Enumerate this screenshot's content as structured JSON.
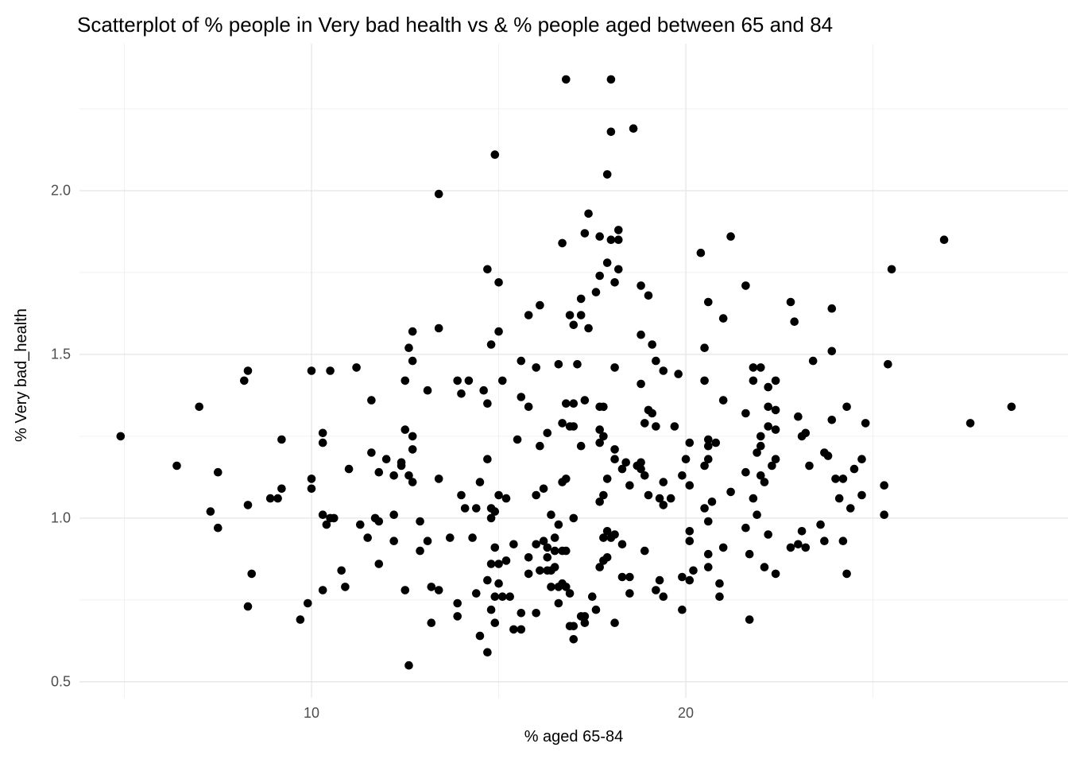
{
  "chart_data": {
    "type": "scatter",
    "title": "Scatterplot of % people in Very bad health vs & % people aged between 65 and 84",
    "xlabel": "% aged 65-84",
    "ylabel": "% Very bad_health",
    "x_domain": [
      3.8,
      30.21
    ],
    "y_domain": [
      0.451,
      2.449
    ],
    "x_ticks": [
      {
        "value": 10,
        "label": "10"
      },
      {
        "value": 20,
        "label": "20"
      }
    ],
    "y_ticks": [
      {
        "value": 0.5,
        "label": "0.5"
      },
      {
        "value": 1.0,
        "label": "1.0"
      },
      {
        "value": 1.5,
        "label": "1.5"
      },
      {
        "value": 2.0,
        "label": "2.0"
      }
    ],
    "x_minor": [
      5,
      15,
      25
    ],
    "y_minor": [
      0.75,
      1.25,
      1.75,
      2.25
    ],
    "grid": true,
    "legend": "none",
    "point_color": "#000000",
    "point_radius": 5.3,
    "colors": {
      "grid_major": "#e6e6e6",
      "grid_minor": "#f0f0f0",
      "tick_label": "#4d4d4d",
      "text": "#000000",
      "background": "#ffffff"
    },
    "points": [
      [
        16.8,
        2.34
      ],
      [
        14.9,
        2.11
      ],
      [
        13.4,
        1.99
      ],
      [
        18.0,
        2.34
      ],
      [
        18.0,
        2.18
      ],
      [
        18.6,
        2.19
      ],
      [
        17.9,
        2.05
      ],
      [
        8.3,
        1.45
      ],
      [
        10.0,
        1.45
      ],
      [
        10.5,
        1.45
      ],
      [
        16.7,
        1.84
      ],
      [
        14.7,
        1.76
      ],
      [
        15.0,
        1.72
      ],
      [
        16.1,
        1.65
      ],
      [
        15.8,
        1.62
      ],
      [
        17.2,
        1.67
      ],
      [
        16.9,
        1.62
      ],
      [
        17.0,
        1.59
      ],
      [
        12.7,
        1.57
      ],
      [
        13.4,
        1.58
      ],
      [
        15.0,
        1.57
      ],
      [
        14.8,
        1.53
      ],
      [
        12.6,
        1.52
      ],
      [
        12.7,
        1.48
      ],
      [
        11.2,
        1.46
      ],
      [
        15.6,
        1.48
      ],
      [
        16.0,
        1.46
      ],
      [
        16.6,
        1.47
      ],
      [
        17.1,
        1.47
      ],
      [
        17.2,
        1.62
      ],
      [
        17.4,
        1.93
      ],
      [
        17.3,
        1.87
      ],
      [
        18.2,
        1.88
      ],
      [
        17.7,
        1.86
      ],
      [
        18.0,
        1.85
      ],
      [
        18.2,
        1.85
      ],
      [
        21.2,
        1.86
      ],
      [
        20.4,
        1.81
      ],
      [
        17.9,
        1.78
      ],
      [
        18.2,
        1.76
      ],
      [
        17.7,
        1.74
      ],
      [
        18.1,
        1.72
      ],
      [
        18.8,
        1.71
      ],
      [
        17.6,
        1.69
      ],
      [
        19.0,
        1.68
      ],
      [
        21.6,
        1.71
      ],
      [
        17.4,
        1.58
      ],
      [
        18.8,
        1.56
      ],
      [
        19.1,
        1.53
      ],
      [
        20.6,
        1.66
      ],
      [
        21.0,
        1.61
      ],
      [
        22.8,
        1.66
      ],
      [
        22.9,
        1.6
      ],
      [
        20.5,
        1.52
      ],
      [
        23.4,
        1.48
      ],
      [
        18.1,
        1.46
      ],
      [
        19.2,
        1.48
      ],
      [
        19.4,
        1.45
      ],
      [
        21.8,
        1.46
      ],
      [
        22.0,
        1.46
      ],
      [
        19.8,
        1.44
      ],
      [
        26.9,
        1.85
      ],
      [
        25.5,
        1.76
      ],
      [
        23.9,
        1.64
      ],
      [
        23.9,
        1.51
      ],
      [
        25.4,
        1.47
      ],
      [
        8.2,
        1.42
      ],
      [
        7.0,
        1.34
      ],
      [
        4.9,
        1.25
      ],
      [
        9.2,
        1.24
      ],
      [
        10.3,
        1.26
      ],
      [
        10.3,
        1.23
      ],
      [
        6.4,
        1.16
      ],
      [
        7.5,
        1.14
      ],
      [
        10.0,
        1.12
      ],
      [
        10.0,
        1.09
      ],
      [
        9.2,
        1.09
      ],
      [
        8.9,
        1.06
      ],
      [
        9.1,
        1.06
      ],
      [
        8.3,
        1.04
      ],
      [
        7.3,
        1.02
      ],
      [
        10.3,
        1.01
      ],
      [
        10.5,
        1.0
      ],
      [
        10.4,
        0.98
      ],
      [
        7.5,
        0.97
      ],
      [
        12.5,
        1.42
      ],
      [
        13.9,
        1.42
      ],
      [
        14.2,
        1.42
      ],
      [
        13.1,
        1.39
      ],
      [
        14.0,
        1.38
      ],
      [
        14.6,
        1.39
      ],
      [
        11.6,
        1.36
      ],
      [
        14.7,
        1.35
      ],
      [
        15.1,
        1.42
      ],
      [
        15.6,
        1.37
      ],
      [
        15.8,
        1.34
      ],
      [
        16.8,
        1.35
      ],
      [
        17.0,
        1.35
      ],
      [
        16.7,
        1.29
      ],
      [
        16.9,
        1.28
      ],
      [
        17.0,
        1.28
      ],
      [
        12.5,
        1.27
      ],
      [
        12.7,
        1.25
      ],
      [
        16.3,
        1.26
      ],
      [
        15.5,
        1.24
      ],
      [
        16.1,
        1.22
      ],
      [
        17.2,
        1.22
      ],
      [
        12.7,
        1.21
      ],
      [
        11.6,
        1.2
      ],
      [
        12.0,
        1.18
      ],
      [
        14.7,
        1.18
      ],
      [
        12.4,
        1.17
      ],
      [
        12.4,
        1.16
      ],
      [
        11.0,
        1.15
      ],
      [
        11.8,
        1.14
      ],
      [
        12.2,
        1.13
      ],
      [
        12.6,
        1.13
      ],
      [
        12.7,
        1.11
      ],
      [
        13.4,
        1.12
      ],
      [
        14.5,
        1.11
      ],
      [
        16.7,
        1.11
      ],
      [
        16.8,
        1.12
      ],
      [
        16.2,
        1.09
      ],
      [
        16.0,
        1.07
      ],
      [
        15.0,
        1.07
      ],
      [
        15.2,
        1.06
      ],
      [
        14.0,
        1.07
      ],
      [
        14.1,
        1.03
      ],
      [
        14.4,
        1.03
      ],
      [
        14.8,
        1.03
      ],
      [
        14.9,
        1.02
      ],
      [
        14.8,
        1.0
      ],
      [
        16.4,
        1.01
      ],
      [
        17.0,
        1.0
      ],
      [
        10.6,
        1.0
      ],
      [
        11.7,
        1.0
      ],
      [
        11.8,
        0.99
      ],
      [
        12.2,
        1.01
      ],
      [
        11.3,
        0.98
      ],
      [
        12.9,
        0.99
      ],
      [
        16.6,
        0.98
      ],
      [
        11.5,
        0.94
      ],
      [
        13.7,
        0.94
      ],
      [
        14.3,
        0.94
      ],
      [
        16.5,
        0.94
      ],
      [
        20.5,
        1.42
      ],
      [
        21.8,
        1.42
      ],
      [
        22.2,
        1.4
      ],
      [
        22.4,
        1.42
      ],
      [
        21.0,
        1.36
      ],
      [
        17.3,
        1.36
      ],
      [
        17.7,
        1.34
      ],
      [
        17.8,
        1.34
      ],
      [
        18.8,
        1.41
      ],
      [
        19.0,
        1.33
      ],
      [
        19.1,
        1.32
      ],
      [
        19.2,
        1.28
      ],
      [
        18.9,
        1.29
      ],
      [
        19.7,
        1.28
      ],
      [
        21.6,
        1.32
      ],
      [
        22.2,
        1.34
      ],
      [
        22.4,
        1.33
      ],
      [
        23.0,
        1.31
      ],
      [
        17.7,
        1.27
      ],
      [
        17.8,
        1.25
      ],
      [
        22.2,
        1.28
      ],
      [
        22.4,
        1.27
      ],
      [
        23.1,
        1.25
      ],
      [
        23.2,
        1.26
      ],
      [
        17.7,
        1.23
      ],
      [
        18.1,
        1.21
      ],
      [
        20.6,
        1.24
      ],
      [
        20.8,
        1.23
      ],
      [
        20.1,
        1.23
      ],
      [
        22.0,
        1.25
      ],
      [
        22.0,
        1.22
      ],
      [
        21.9,
        1.2
      ],
      [
        23.7,
        1.2
      ],
      [
        20.6,
        1.22
      ],
      [
        20.6,
        1.18
      ],
      [
        18.1,
        1.18
      ],
      [
        18.4,
        1.17
      ],
      [
        18.8,
        1.17
      ],
      [
        18.7,
        1.16
      ],
      [
        18.8,
        1.15
      ],
      [
        18.3,
        1.15
      ],
      [
        18.9,
        1.13
      ],
      [
        20.0,
        1.18
      ],
      [
        20.5,
        1.16
      ],
      [
        21.6,
        1.14
      ],
      [
        22.0,
        1.13
      ],
      [
        22.1,
        1.11
      ],
      [
        22.3,
        1.16
      ],
      [
        22.4,
        1.18
      ],
      [
        23.3,
        1.16
      ],
      [
        17.9,
        1.12
      ],
      [
        18.5,
        1.1
      ],
      [
        19.4,
        1.11
      ],
      [
        19.9,
        1.13
      ],
      [
        20.1,
        1.1
      ],
      [
        17.8,
        1.07
      ],
      [
        17.7,
        1.05
      ],
      [
        19.0,
        1.07
      ],
      [
        19.3,
        1.06
      ],
      [
        19.4,
        1.04
      ],
      [
        19.6,
        1.06
      ],
      [
        21.2,
        1.08
      ],
      [
        20.7,
        1.05
      ],
      [
        20.5,
        1.03
      ],
      [
        21.8,
        1.06
      ],
      [
        21.9,
        1.01
      ],
      [
        20.6,
        0.99
      ],
      [
        21.6,
        0.97
      ],
      [
        23.6,
        0.98
      ],
      [
        23.1,
        0.96
      ],
      [
        17.9,
        0.96
      ],
      [
        18.1,
        0.95
      ],
      [
        20.1,
        0.96
      ],
      [
        22.2,
        0.95
      ],
      [
        24.3,
        1.34
      ],
      [
        23.9,
        1.3
      ],
      [
        24.8,
        1.29
      ],
      [
        28.7,
        1.34
      ],
      [
        27.6,
        1.29
      ],
      [
        23.8,
        1.19
      ],
      [
        24.7,
        1.18
      ],
      [
        24.5,
        1.15
      ],
      [
        24.0,
        1.12
      ],
      [
        24.2,
        1.12
      ],
      [
        25.3,
        1.1
      ],
      [
        24.1,
        1.06
      ],
      [
        24.7,
        1.07
      ],
      [
        24.4,
        1.03
      ],
      [
        25.3,
        1.01
      ],
      [
        8.4,
        0.83
      ],
      [
        10.3,
        0.78
      ],
      [
        8.3,
        0.73
      ],
      [
        9.9,
        0.74
      ],
      [
        9.7,
        0.69
      ],
      [
        12.2,
        0.93
      ],
      [
        13.1,
        0.93
      ],
      [
        12.9,
        0.9
      ],
      [
        11.8,
        0.86
      ],
      [
        10.8,
        0.84
      ],
      [
        10.9,
        0.79
      ],
      [
        12.5,
        0.78
      ],
      [
        13.2,
        0.79
      ],
      [
        13.4,
        0.78
      ],
      [
        14.9,
        0.91
      ],
      [
        15.4,
        0.92
      ],
      [
        14.8,
        0.86
      ],
      [
        15.0,
        0.86
      ],
      [
        15.2,
        0.87
      ],
      [
        15.8,
        0.88
      ],
      [
        16.0,
        0.92
      ],
      [
        16.2,
        0.93
      ],
      [
        16.3,
        0.91
      ],
      [
        16.3,
        0.88
      ],
      [
        16.5,
        0.9
      ],
      [
        16.7,
        0.9
      ],
      [
        16.8,
        0.9
      ],
      [
        15.8,
        0.83
      ],
      [
        16.1,
        0.84
      ],
      [
        16.3,
        0.84
      ],
      [
        16.4,
        0.84
      ],
      [
        16.5,
        0.85
      ],
      [
        14.7,
        0.81
      ],
      [
        15.0,
        0.8
      ],
      [
        16.4,
        0.79
      ],
      [
        16.6,
        0.79
      ],
      [
        16.7,
        0.8
      ],
      [
        16.8,
        0.79
      ],
      [
        16.9,
        0.77
      ],
      [
        14.4,
        0.77
      ],
      [
        14.9,
        0.76
      ],
      [
        15.1,
        0.76
      ],
      [
        15.3,
        0.76
      ],
      [
        13.9,
        0.74
      ],
      [
        14.8,
        0.72
      ],
      [
        13.9,
        0.7
      ],
      [
        13.2,
        0.68
      ],
      [
        14.9,
        0.68
      ],
      [
        14.5,
        0.64
      ],
      [
        16.6,
        0.74
      ],
      [
        15.6,
        0.71
      ],
      [
        16.0,
        0.71
      ],
      [
        15.4,
        0.66
      ],
      [
        15.6,
        0.66
      ],
      [
        16.9,
        0.67
      ],
      [
        17.0,
        0.67
      ],
      [
        17.0,
        0.63
      ],
      [
        14.7,
        0.59
      ],
      [
        12.6,
        0.55
      ],
      [
        17.8,
        0.94
      ],
      [
        18.0,
        0.94
      ],
      [
        18.3,
        0.92
      ],
      [
        18.9,
        0.9
      ],
      [
        17.7,
        0.85
      ],
      [
        17.8,
        0.87
      ],
      [
        17.9,
        0.88
      ],
      [
        18.3,
        0.82
      ],
      [
        18.5,
        0.82
      ],
      [
        18.5,
        0.77
      ],
      [
        17.5,
        0.76
      ],
      [
        19.3,
        0.81
      ],
      [
        19.2,
        0.78
      ],
      [
        19.4,
        0.76
      ],
      [
        19.9,
        0.72
      ],
      [
        20.1,
        0.93
      ],
      [
        20.2,
        0.84
      ],
      [
        19.9,
        0.82
      ],
      [
        20.1,
        0.81
      ],
      [
        20.6,
        0.89
      ],
      [
        20.6,
        0.85
      ],
      [
        21.0,
        0.91
      ],
      [
        20.9,
        0.8
      ],
      [
        20.9,
        0.76
      ],
      [
        21.7,
        0.89
      ],
      [
        21.7,
        0.69
      ],
      [
        22.1,
        0.85
      ],
      [
        22.4,
        0.83
      ],
      [
        22.8,
        0.91
      ],
      [
        23.0,
        0.92
      ],
      [
        23.2,
        0.91
      ],
      [
        23.7,
        0.93
      ],
      [
        17.2,
        0.7
      ],
      [
        17.3,
        0.7
      ],
      [
        17.3,
        0.68
      ],
      [
        18.1,
        0.68
      ],
      [
        17.6,
        0.72
      ],
      [
        24.2,
        0.93
      ],
      [
        24.3,
        0.83
      ]
    ]
  }
}
